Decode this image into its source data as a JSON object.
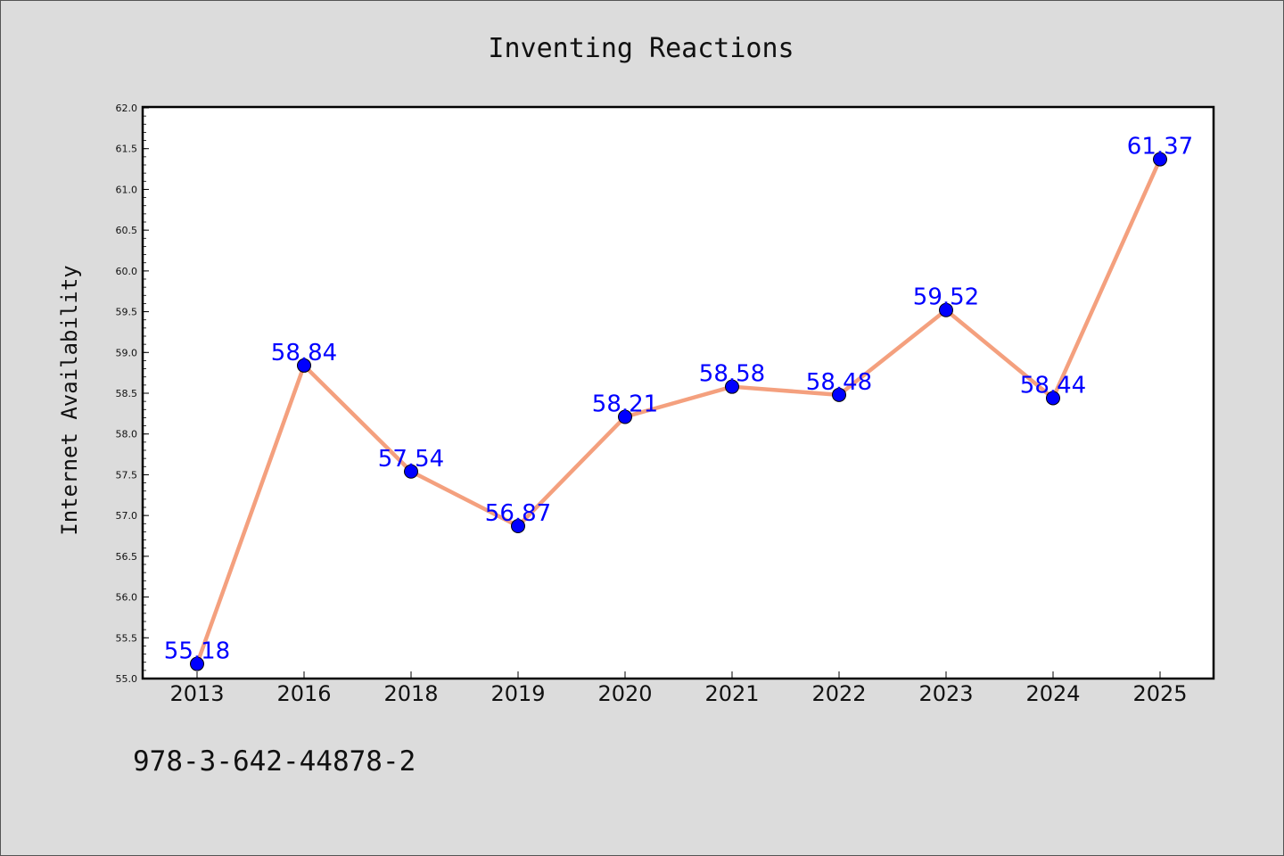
{
  "chart_data": {
    "type": "line",
    "title": "Inventing Reactions",
    "xlabel": "",
    "ylabel": "Internet Availability",
    "categories": [
      "2013",
      "2016",
      "2018",
      "2019",
      "2020",
      "2021",
      "2022",
      "2023",
      "2024",
      "2025"
    ],
    "values": [
      55.18,
      58.84,
      57.54,
      56.87,
      58.21,
      58.58,
      58.48,
      59.52,
      58.44,
      61.37
    ],
    "data_labels": [
      "55.18",
      "58.84",
      "57.54",
      "56.87",
      "58.21",
      "58.58",
      "58.48",
      "59.52",
      "58.44",
      "61.37"
    ],
    "ylim": [
      55.0,
      62.0
    ],
    "yticks": [
      "55.0",
      "55.5",
      "56.0",
      "56.5",
      "57.0",
      "57.5",
      "58.0",
      "58.5",
      "59.0",
      "59.5",
      "60.0",
      "60.5",
      "61.0",
      "61.5",
      "62.0"
    ],
    "grid": false,
    "line_color": "#f4a07e",
    "marker_color": "#0000ff",
    "label_color": "#0000ff"
  },
  "footer": {
    "text": "978-3-642-44878-2"
  }
}
